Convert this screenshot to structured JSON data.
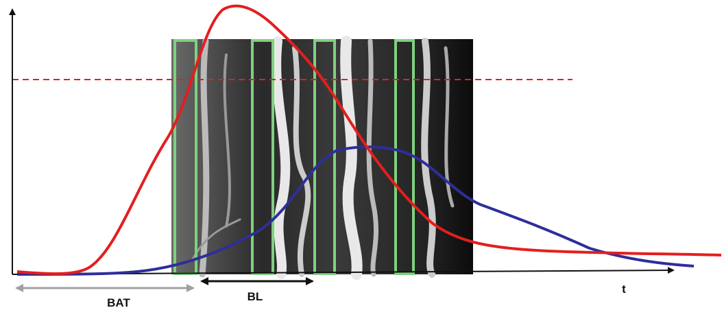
{
  "labels": {
    "bat": "BAT",
    "bl": "BL",
    "t": "t"
  }
}
